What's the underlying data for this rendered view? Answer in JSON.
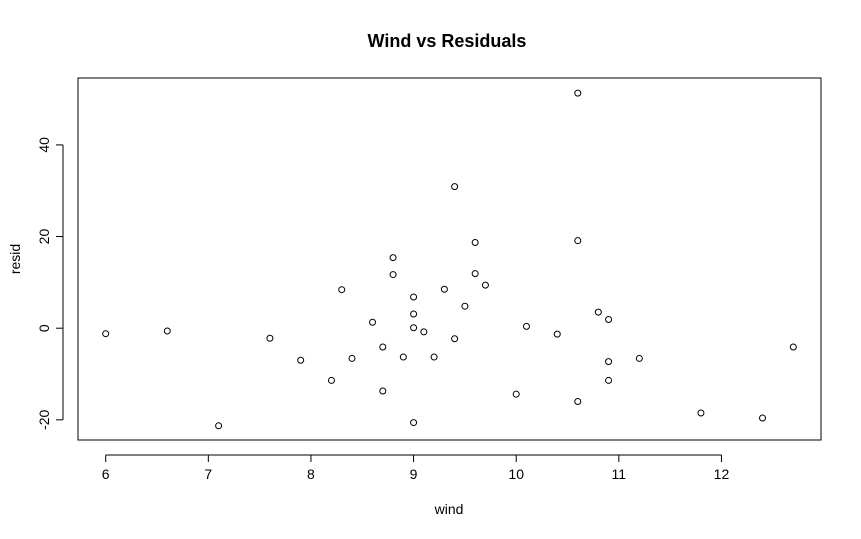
{
  "chart_data": {
    "type": "scatter",
    "title": "Wind vs Residuals",
    "xlabel": "wind",
    "ylabel": "resid",
    "xlim": [
      5.73,
      12.97
    ],
    "ylim": [
      -24.4,
      54.6
    ],
    "x_ticks": [
      6,
      7,
      8,
      9,
      10,
      11,
      12
    ],
    "y_ticks": [
      -20,
      0,
      20,
      40
    ],
    "grid": false,
    "legend": "none",
    "marker": "open-circle",
    "colors": {
      "points": "#000000",
      "axes": "#000000",
      "background": "#ffffff"
    },
    "points": [
      {
        "x": 6.0,
        "y": -1.2
      },
      {
        "x": 6.6,
        "y": -0.6
      },
      {
        "x": 7.1,
        "y": -21.3
      },
      {
        "x": 7.6,
        "y": -2.2
      },
      {
        "x": 7.9,
        "y": -7.0
      },
      {
        "x": 8.2,
        "y": -11.4
      },
      {
        "x": 8.3,
        "y": 8.4
      },
      {
        "x": 8.4,
        "y": -6.6
      },
      {
        "x": 8.6,
        "y": 1.3
      },
      {
        "x": 8.7,
        "y": -4.1
      },
      {
        "x": 8.7,
        "y": -13.7
      },
      {
        "x": 8.8,
        "y": 15.4
      },
      {
        "x": 8.8,
        "y": 11.7
      },
      {
        "x": 8.9,
        "y": -6.3
      },
      {
        "x": 9.0,
        "y": 6.8
      },
      {
        "x": 9.0,
        "y": 3.1
      },
      {
        "x": 9.0,
        "y": 0.1
      },
      {
        "x": 9.0,
        "y": -20.6
      },
      {
        "x": 9.1,
        "y": -0.8
      },
      {
        "x": 9.2,
        "y": -6.3
      },
      {
        "x": 9.3,
        "y": 8.5
      },
      {
        "x": 9.4,
        "y": 30.9
      },
      {
        "x": 9.4,
        "y": -2.3
      },
      {
        "x": 9.5,
        "y": 4.8
      },
      {
        "x": 9.6,
        "y": 18.7
      },
      {
        "x": 9.6,
        "y": 11.9
      },
      {
        "x": 9.7,
        "y": 9.4
      },
      {
        "x": 10.0,
        "y": -14.4
      },
      {
        "x": 10.1,
        "y": 0.4
      },
      {
        "x": 10.4,
        "y": -1.3
      },
      {
        "x": 10.6,
        "y": 51.3
      },
      {
        "x": 10.6,
        "y": 19.1
      },
      {
        "x": 10.6,
        "y": -16.0
      },
      {
        "x": 10.8,
        "y": 3.5
      },
      {
        "x": 10.9,
        "y": 1.9
      },
      {
        "x": 10.9,
        "y": -7.3
      },
      {
        "x": 10.9,
        "y": -11.4
      },
      {
        "x": 11.2,
        "y": -6.6
      },
      {
        "x": 11.8,
        "y": -18.5
      },
      {
        "x": 12.4,
        "y": -19.6
      },
      {
        "x": 12.7,
        "y": -4.1
      }
    ]
  }
}
